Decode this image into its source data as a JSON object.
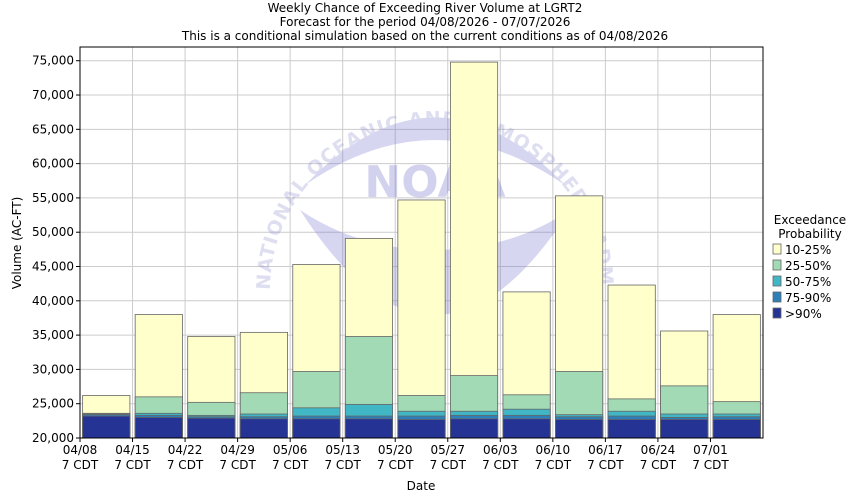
{
  "chart_data": {
    "type": "bar",
    "stacked": true,
    "title": "Weekly Chance of Exceeding River Volume at LGRT2",
    "subtitle_lines": [
      "Forecast for the period 04/08/2026 - 07/07/2026",
      "This is a conditional simulation based on the current conditions as of 04/08/2026"
    ],
    "xlabel": "Date",
    "ylabel": "Volume (AC-FT)",
    "ylim": [
      20000,
      77000
    ],
    "yticks": [
      20000,
      25000,
      30000,
      35000,
      40000,
      45000,
      50000,
      55000,
      60000,
      65000,
      70000,
      75000
    ],
    "ytick_labels": [
      "20,000",
      "25,000",
      "30,000",
      "35,000",
      "40,000",
      "45,000",
      "50,000",
      "55,000",
      "60,000",
      "65,000",
      "70,000",
      "75,000"
    ],
    "xtick_labels": [
      [
        "04/08",
        "7 CDT"
      ],
      [
        "04/15",
        "7 CDT"
      ],
      [
        "04/22",
        "7 CDT"
      ],
      [
        "04/29",
        "7 CDT"
      ],
      [
        "05/06",
        "7 CDT"
      ],
      [
        "05/13",
        "7 CDT"
      ],
      [
        "05/20",
        "7 CDT"
      ],
      [
        "05/27",
        "7 CDT"
      ],
      [
        "06/03",
        "7 CDT"
      ],
      [
        "06/10",
        "7 CDT"
      ],
      [
        "06/17",
        "7 CDT"
      ],
      [
        "06/24",
        "7 CDT"
      ],
      [
        "07/01",
        "7 CDT"
      ]
    ],
    "grid": true,
    "legend_title": [
      "Exceedance",
      "Probability"
    ],
    "legend_position": "right",
    "series": [
      {
        "name": "10-25%",
        "color": "#ffffcc",
        "tops": [
          26200,
          38000,
          34800,
          35400,
          45300,
          49100,
          54700,
          74800,
          41300,
          55300,
          42300,
          35600,
          38000
        ]
      },
      {
        "name": "25-50%",
        "color": "#a1dab4",
        "tops": [
          23600,
          26000,
          25200,
          26600,
          29700,
          34800,
          26200,
          29100,
          26300,
          29700,
          25700,
          27600,
          25300
        ]
      },
      {
        "name": "50-75%",
        "color": "#41b6c4",
        "tops": [
          23500,
          23600,
          23300,
          23500,
          24400,
          24900,
          23900,
          23900,
          24200,
          23400,
          23900,
          23500,
          23500
        ]
      },
      {
        "name": "75-90%",
        "color": "#2c7fb8",
        "tops": [
          23400,
          23300,
          23100,
          23100,
          23200,
          23200,
          23200,
          23300,
          23300,
          23100,
          23200,
          23000,
          23100
        ]
      },
      {
        "name": ">90%",
        "color": "#253494",
        "tops": [
          23200,
          23000,
          22900,
          22800,
          22800,
          22800,
          22700,
          22800,
          22800,
          22700,
          22700,
          22700,
          22700
        ]
      }
    ]
  },
  "watermark": {
    "ring_text": "NATIONAL OCEANIC AND ATMOSPHERIC ADMINISTRATION",
    "logo_text": "NOAA"
  }
}
